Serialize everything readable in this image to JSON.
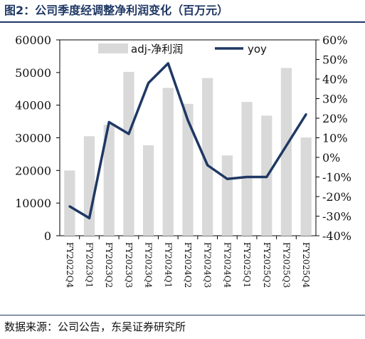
{
  "title": "图2：公司季度经调整净利润变化（百万元）",
  "footer": "数据来源：公司公告，东吴证券研究所",
  "colors": {
    "bar": "#d9d9d9",
    "line": "#1f3864",
    "title": "#1f3864"
  },
  "chart_data": {
    "type": "bar",
    "categories": [
      "FY2022Q4",
      "FY2023Q1",
      "FY2023Q2",
      "FY2023Q3",
      "FY2023Q4",
      "FY2024Q1",
      "FY2024Q2",
      "FY2024Q3",
      "FY2024Q4",
      "FY2025Q1",
      "FY2025Q2",
      "FY2025Q3",
      "FY2025Q4"
    ],
    "series": [
      {
        "name": "adj-净利润",
        "type": "bar",
        "axis": "left",
        "values": [
          20000,
          30500,
          34000,
          50200,
          27700,
          45300,
          40400,
          48300,
          24600,
          41000,
          36800,
          51400,
          30100
        ]
      },
      {
        "name": "yoy",
        "type": "line",
        "axis": "right",
        "unit": "%",
        "values": [
          -25,
          -31,
          18,
          12,
          38,
          48,
          19,
          -4,
          -11,
          -10,
          -10,
          6,
          22
        ]
      }
    ],
    "y_left": {
      "range": [
        0,
        60000
      ],
      "ticks": [
        "0",
        "10000",
        "20000",
        "30000",
        "40000",
        "50000",
        "60000"
      ]
    },
    "y_right": {
      "range": [
        -40,
        60
      ],
      "ticks": [
        "-40%",
        "-30%",
        "-20%",
        "-10%",
        "0%",
        "10%",
        "20%",
        "30%",
        "40%",
        "50%",
        "60%"
      ]
    },
    "legend_position": "top",
    "grid": false
  }
}
